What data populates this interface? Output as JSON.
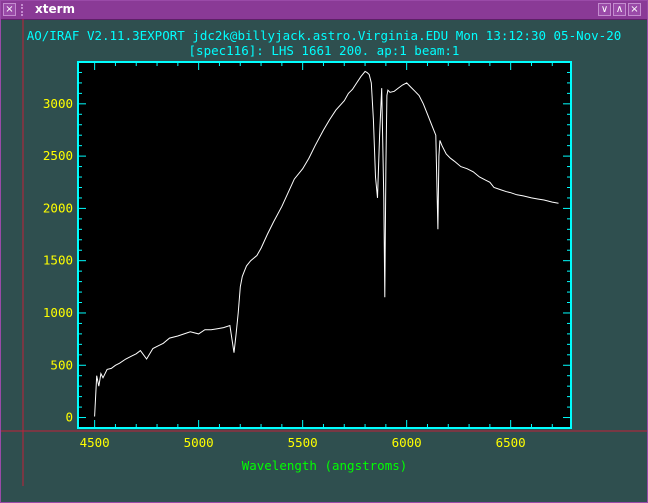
{
  "window": {
    "title": "xterm",
    "buttons": {
      "menu": "×",
      "iconify": "∨",
      "maximize": "∧",
      "close": "×"
    }
  },
  "header": {
    "line1": "AO/IRAF V2.11.3EXPORT jdc2k@billyjack.astro.Virginia.EDU Mon 13:12:30 05-Nov-20",
    "line2": "[spec116]: LHS 1661 200. ap:1 beam:1"
  },
  "colors": {
    "background": "#2f4f4f",
    "frame": "#00ffff",
    "ticks": "#ffff00",
    "cursor": "#c0203a",
    "trace": "#ffffff",
    "titlebar": "#8a3a96"
  },
  "chart_data": {
    "type": "line",
    "title": "[spec116]: LHS 1661 200. ap:1 beam:1",
    "xlabel": "Wavelength (angstroms)",
    "ylabel": "",
    "xlim": [
      4420,
      6790
    ],
    "ylim": [
      -100,
      3400
    ],
    "xticks": [
      4500,
      5000,
      5500,
      6000,
      6500
    ],
    "yticks": [
      0,
      500,
      1000,
      1500,
      2000,
      2500,
      3000
    ],
    "grid": false,
    "series": [
      {
        "x": [
          4500,
          4510,
          4520,
          4530,
          4540,
          4560,
          4580,
          4600,
          4620,
          4650,
          4680,
          4700,
          4720,
          4750,
          4780,
          4800,
          4830,
          4860,
          4900,
          4930,
          4960,
          5000,
          5030,
          5060,
          5090,
          5120,
          5150,
          5170,
          5180,
          5190,
          5200,
          5210,
          5220,
          5230,
          5250,
          5280,
          5300,
          5330,
          5360,
          5400,
          5430,
          5460,
          5500,
          5530,
          5560,
          5600,
          5630,
          5660,
          5700,
          5720,
          5740,
          5760,
          5780,
          5800,
          5810,
          5820,
          5830,
          5840,
          5850,
          5860,
          5870,
          5880,
          5890,
          5895,
          5900,
          5905,
          5910,
          5920,
          5940,
          5960,
          5980,
          6000,
          6020,
          6040,
          6060,
          6080,
          6100,
          6120,
          6140,
          6150,
          6155,
          6160,
          6170,
          6190,
          6210,
          6230,
          6260,
          6290,
          6320,
          6350,
          6380,
          6400,
          6420,
          6450,
          6480,
          6500,
          6530,
          6560,
          6600,
          6630,
          6660,
          6700,
          6730
        ],
        "values": [
          10,
          400,
          300,
          420,
          380,
          460,
          470,
          500,
          520,
          560,
          590,
          610,
          640,
          560,
          660,
          680,
          710,
          760,
          780,
          800,
          820,
          800,
          840,
          840,
          850,
          860,
          880,
          620,
          800,
          1000,
          1250,
          1350,
          1400,
          1450,
          1500,
          1550,
          1620,
          1750,
          1870,
          2020,
          2150,
          2280,
          2380,
          2480,
          2600,
          2750,
          2850,
          2940,
          3030,
          3100,
          3140,
          3200,
          3260,
          3310,
          3300,
          3280,
          3200,
          2850,
          2300,
          2100,
          2700,
          3150,
          2100,
          1150,
          2400,
          3080,
          3130,
          3110,
          3120,
          3150,
          3180,
          3200,
          3160,
          3120,
          3080,
          3000,
          2900,
          2800,
          2700,
          1800,
          2500,
          2650,
          2600,
          2520,
          2480,
          2450,
          2400,
          2380,
          2350,
          2300,
          2270,
          2250,
          2200,
          2180,
          2160,
          2150,
          2130,
          2120,
          2100,
          2090,
          2080,
          2060,
          2050
        ]
      }
    ]
  }
}
